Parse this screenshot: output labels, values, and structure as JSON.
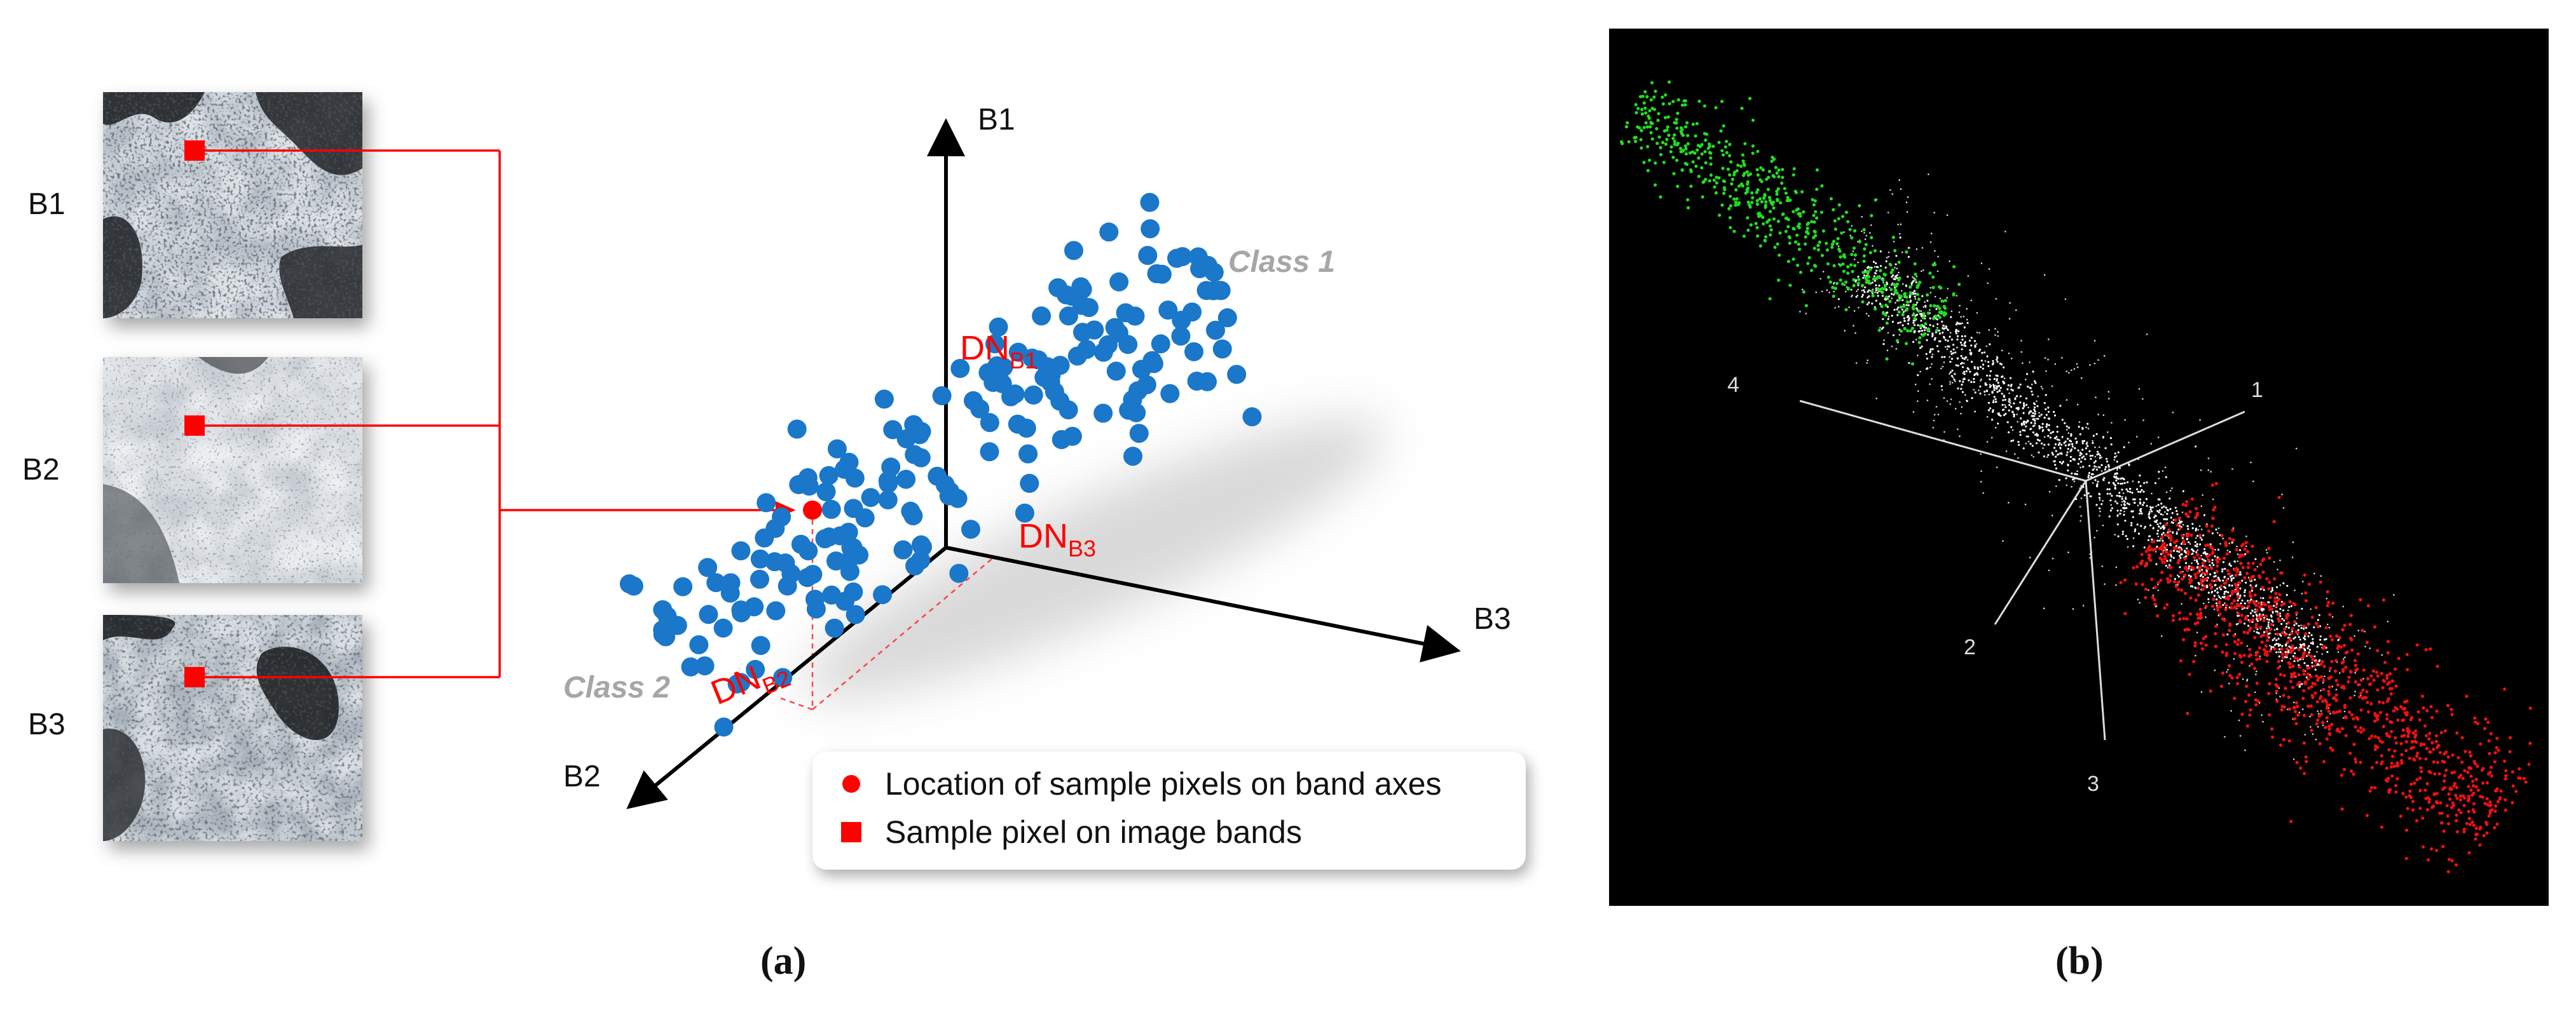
{
  "panel_a": {
    "bands": [
      "B1",
      "B2",
      "B3"
    ],
    "axis_labels": {
      "b1": "B1",
      "b2": "B2",
      "b3": "B3"
    },
    "dn_labels": {
      "b1": {
        "main": "DN",
        "sub": "B1"
      },
      "b2": {
        "main": "DN",
        "sub": "B2"
      },
      "b3": {
        "main": "DN",
        "sub": "B3"
      }
    },
    "class_labels": {
      "class1": "Class 1",
      "class2": "Class 2"
    },
    "legend": {
      "item1": "Location of sample pixels on band axes",
      "item2": "Sample pixel on image bands"
    },
    "caption": "(a)"
  },
  "panel_b": {
    "axis_labels": [
      "1",
      "2",
      "3",
      "4"
    ],
    "caption": "(b)"
  },
  "colors": {
    "blue_points": "#1a77c9",
    "red": "#ff0000",
    "class_gray": "#a6a6a6",
    "green_points": "#22dd22",
    "red_points": "#ee1111",
    "white_points": "#ffffff",
    "background_dark": "#000000"
  }
}
